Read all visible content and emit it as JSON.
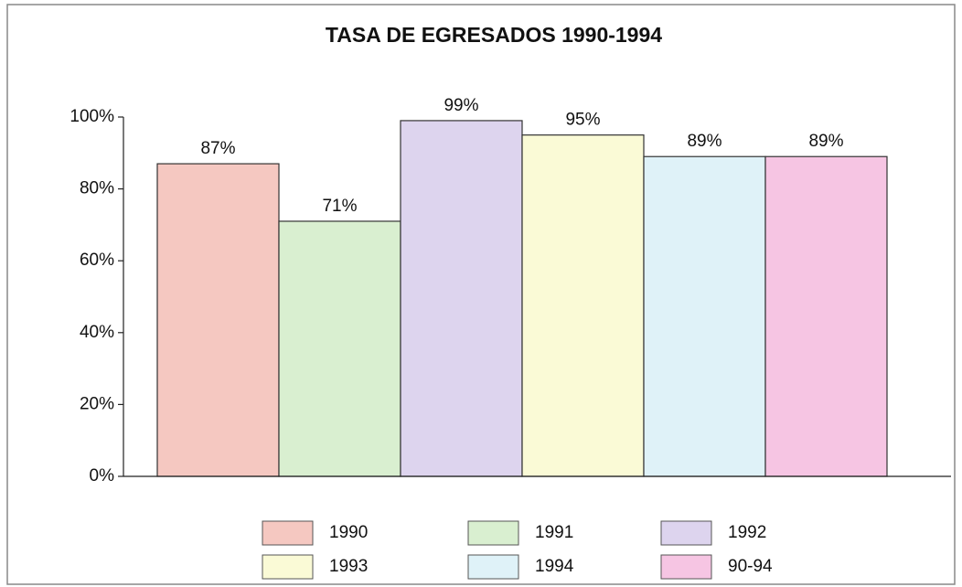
{
  "chart_data": {
    "type": "bar",
    "title": "TASA DE EGRESADOS 1990-1994",
    "categories": [
      "1990",
      "1991",
      "1992",
      "1993",
      "1994",
      "90-94"
    ],
    "values": [
      87,
      71,
      99,
      95,
      89,
      89
    ],
    "value_labels": [
      "87%",
      "71%",
      "99%",
      "95%",
      "89%",
      "89%"
    ],
    "colors": [
      "#f5c8c1",
      "#d9efd0",
      "#ddd4ee",
      "#fafad6",
      "#dff2f8",
      "#f6c5e3"
    ],
    "ylim": [
      0,
      100
    ],
    "yticks": [
      {
        "value": 0,
        "label": "0%"
      },
      {
        "value": 20,
        "label": "20%"
      },
      {
        "value": 40,
        "label": "40%"
      },
      {
        "value": 60,
        "label": "60%"
      },
      {
        "value": 80,
        "label": "80%"
      },
      {
        "value": 100,
        "label": "100%"
      }
    ],
    "grid": false,
    "legend": "bottom"
  }
}
